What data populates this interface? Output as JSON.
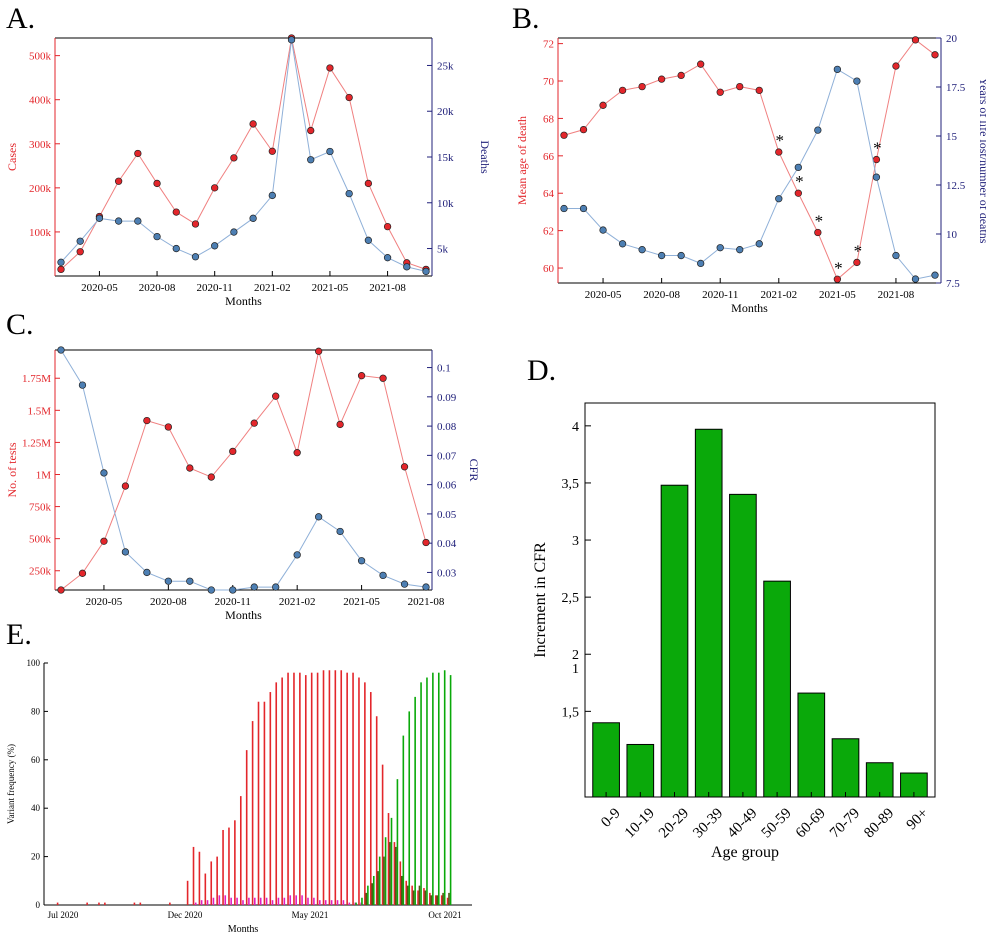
{
  "panels": {
    "A": {
      "letter": "A."
    },
    "B": {
      "letter": "B."
    },
    "C": {
      "letter": "C."
    },
    "D": {
      "letter": "D."
    },
    "E": {
      "letter": "E."
    }
  },
  "colors": {
    "red": "#e3262b",
    "blue": "#4d7fb3",
    "green": "#0aa90a",
    "magenta": "#e020c0",
    "olive": "#4a5a12",
    "axis_red": "#e3262b",
    "axis_blue": "#20207a"
  },
  "chart_data": [
    {
      "panel": "A",
      "type": "line",
      "xlabel": "Months",
      "x_ticks": [
        "2020-05",
        "2020-08",
        "2020-11",
        "2021-02",
        "2021-05",
        "2021-08"
      ],
      "y_left": {
        "label": "Cases",
        "ticks": [
          "100k",
          "200k",
          "300k",
          "400k",
          "500k"
        ],
        "ylim": [
          0,
          540000
        ]
      },
      "y_right": {
        "label": "Deaths",
        "ticks": [
          "5k",
          "10k",
          "15k",
          "20k",
          "25k"
        ],
        "ylim": [
          2000,
          28000
        ]
      },
      "x": [
        "2020-03",
        "2020-04",
        "2020-05",
        "2020-06",
        "2020-07",
        "2020-08",
        "2020-09",
        "2020-10",
        "2020-11",
        "2020-12",
        "2021-01",
        "2021-02",
        "2021-03",
        "2021-04",
        "2021-05",
        "2021-06",
        "2021-07",
        "2021-08",
        "2021-09",
        "2021-10"
      ],
      "series": [
        {
          "axis": "left",
          "color": "red",
          "values": [
            15000,
            55000,
            135000,
            215000,
            278000,
            210000,
            145000,
            118000,
            200000,
            268000,
            345000,
            283000,
            540000,
            330000,
            472000,
            405000,
            210000,
            112000,
            30000,
            15000
          ]
        },
        {
          "axis": "right",
          "color": "blue",
          "values": [
            3500,
            5800,
            8300,
            8000,
            8000,
            6300,
            5000,
            4100,
            5300,
            6800,
            8300,
            10800,
            27800,
            14700,
            15600,
            11000,
            5900,
            4000,
            3000,
            2500
          ]
        }
      ]
    },
    {
      "panel": "B",
      "type": "line",
      "xlabel": "Months",
      "x_ticks": [
        "2020-05",
        "2020-08",
        "2020-11",
        "2021-02",
        "2021-05",
        "2021-08"
      ],
      "y_left": {
        "label": "Mean age of death",
        "ticks": [
          "60",
          "62",
          "64",
          "66",
          "68",
          "70",
          "72"
        ],
        "ylim": [
          59.2,
          72.3
        ]
      },
      "y_right": {
        "label": "Years of life lost/number of deaths",
        "ticks": [
          "7.5",
          "10",
          "12.5",
          "15",
          "17.5",
          "20"
        ],
        "ylim": [
          7.5,
          20
        ]
      },
      "x": [
        "2020-03",
        "2020-04",
        "2020-05",
        "2020-06",
        "2020-07",
        "2020-08",
        "2020-09",
        "2020-10",
        "2020-11",
        "2020-12",
        "2021-01",
        "2021-02",
        "2021-03",
        "2021-04",
        "2021-05",
        "2021-06",
        "2021-07",
        "2021-08",
        "2021-09",
        "2021-10"
      ],
      "series": [
        {
          "axis": "left",
          "color": "red",
          "values": [
            67.1,
            67.4,
            68.7,
            69.5,
            69.7,
            70.1,
            70.3,
            70.9,
            69.4,
            69.7,
            69.5,
            66.2,
            64.0,
            61.9,
            59.4,
            60.3,
            65.8,
            70.8,
            72.2,
            71.4
          ]
        },
        {
          "axis": "right",
          "color": "blue",
          "values": [
            11.3,
            11.3,
            10.2,
            9.5,
            9.2,
            8.9,
            8.9,
            8.5,
            9.3,
            9.2,
            9.5,
            11.8,
            13.4,
            15.3,
            18.4,
            17.8,
            12.9,
            8.9,
            7.7,
            7.9
          ]
        }
      ],
      "annotations": {
        "marker": "*",
        "indices": [
          11,
          12,
          13,
          14,
          15,
          16
        ]
      }
    },
    {
      "panel": "C",
      "type": "line",
      "xlabel": "Months",
      "x_ticks": [
        "2020-05",
        "2020-08",
        "2020-11",
        "2021-02",
        "2021-05",
        "2021-08"
      ],
      "y_left": {
        "label": "No. of tests",
        "ticks": [
          "250k",
          "500k",
          "750k",
          "1M",
          "1.25M",
          "1.5M",
          "1.75M"
        ],
        "ylim": [
          100000,
          1970000
        ]
      },
      "y_right": {
        "label": "CFR",
        "ticks": [
          "0.03",
          "0.04",
          "0.05",
          "0.06",
          "0.07",
          "0.08",
          "0.09",
          "0.1"
        ],
        "ylim": [
          0.024,
          0.106
        ]
      },
      "x": [
        "2020-03",
        "2020-04",
        "2020-05",
        "2020-06",
        "2020-07",
        "2020-08",
        "2020-09",
        "2020-10",
        "2020-11",
        "2020-12",
        "2021-01",
        "2021-02",
        "2021-03",
        "2021-04",
        "2021-05",
        "2021-06",
        "2021-07",
        "2021-08"
      ],
      "series": [
        {
          "axis": "left",
          "color": "red",
          "values": [
            100000,
            230000,
            480000,
            910000,
            1420000,
            1370000,
            1050000,
            980000,
            1180000,
            1400000,
            1610000,
            1170000,
            1960000,
            1390000,
            1770000,
            1750000,
            1060000,
            470000
          ]
        },
        {
          "axis": "right",
          "color": "blue",
          "values": [
            0.106,
            0.094,
            0.064,
            0.037,
            0.03,
            0.027,
            0.027,
            0.024,
            0.024,
            0.025,
            0.025,
            0.036,
            0.049,
            0.044,
            0.034,
            0.029,
            0.026,
            0.025
          ]
        }
      ]
    },
    {
      "panel": "D",
      "type": "bar",
      "xlabel": "Age group",
      "ylabel": "Increment in CFR",
      "y_ticks": [
        "1,5",
        "2",
        "2,5",
        "3",
        "3,5",
        "4"
      ],
      "extra_tick": "1",
      "ylim": [
        0.75,
        4.2
      ],
      "categories": [
        "0-9",
        "10-19",
        "20-29",
        "30-39",
        "40-49",
        "50-59",
        "60-69",
        "70-79",
        "80-89",
        "90+"
      ],
      "values": [
        1.4,
        1.21,
        3.48,
        3.97,
        3.4,
        2.64,
        1.66,
        1.26,
        1.05,
        0.96
      ],
      "color": "green"
    },
    {
      "panel": "E",
      "type": "bar",
      "xlabel": "Months",
      "ylabel": "Variant frequency (%)",
      "y_ticks": [
        "0",
        "20",
        "40",
        "60",
        "80",
        "100"
      ],
      "ylim": [
        0,
        100
      ],
      "x_ticks": [
        "Jul 2020",
        "Dec 2020",
        "May 2021",
        "Oct 2021"
      ],
      "series": [
        {
          "color": "red",
          "values": [
            1,
            0,
            0,
            0,
            0,
            1,
            0,
            1,
            1,
            0,
            0,
            0,
            0,
            1,
            1,
            0,
            0,
            0,
            0,
            1,
            0,
            0,
            10,
            24,
            22,
            13,
            18,
            20,
            31,
            32,
            35,
            45,
            64,
            76,
            84,
            84,
            88,
            92,
            94,
            96,
            96,
            96,
            95,
            96,
            96,
            97,
            97,
            97,
            97,
            96,
            96,
            94,
            92,
            88,
            78,
            58,
            38,
            26,
            18,
            10,
            8,
            6,
            7,
            5,
            4,
            4,
            3
          ]
        },
        {
          "color": "magenta",
          "values": [
            0,
            0,
            0,
            0,
            0,
            0,
            0,
            0,
            0,
            0,
            0,
            0,
            0,
            0,
            0,
            0,
            0,
            0,
            0,
            0,
            0,
            0,
            0,
            1,
            2,
            2,
            3,
            4,
            4,
            3,
            3,
            2,
            3,
            3,
            3,
            3,
            2,
            3,
            3,
            4,
            4,
            4,
            3,
            3,
            2,
            2,
            2,
            2,
            2,
            1,
            1,
            1,
            1,
            1,
            0,
            0,
            0,
            0,
            0,
            0,
            0,
            0,
            0,
            0,
            0,
            0,
            0
          ]
        },
        {
          "color": "green",
          "values": [
            0,
            0,
            0,
            0,
            0,
            0,
            0,
            0,
            0,
            0,
            0,
            0,
            0,
            0,
            0,
            0,
            0,
            0,
            0,
            0,
            0,
            0,
            0,
            0,
            0,
            0,
            0,
            0,
            0,
            0,
            0,
            0,
            0,
            0,
            0,
            0,
            0,
            0,
            0,
            0,
            0,
            0,
            0,
            0,
            0,
            0,
            0,
            0,
            0,
            0,
            1,
            3,
            8,
            12,
            20,
            28,
            36,
            52,
            70,
            80,
            86,
            92,
            94,
            96,
            96,
            97,
            95
          ]
        },
        {
          "color": "olive",
          "values": [
            0,
            0,
            0,
            0,
            0,
            0,
            0,
            0,
            0,
            0,
            0,
            0,
            0,
            0,
            0,
            0,
            0,
            0,
            0,
            0,
            0,
            0,
            0,
            0,
            0,
            0,
            0,
            0,
            0,
            0,
            0,
            0,
            0,
            0,
            0,
            0,
            0,
            0,
            0,
            0,
            0,
            0,
            0,
            0,
            0,
            0,
            0,
            0,
            0,
            0,
            0,
            0,
            5,
            9,
            14,
            20,
            26,
            24,
            12,
            8,
            6,
            8,
            6,
            4,
            4,
            5,
            5
          ]
        }
      ]
    }
  ]
}
